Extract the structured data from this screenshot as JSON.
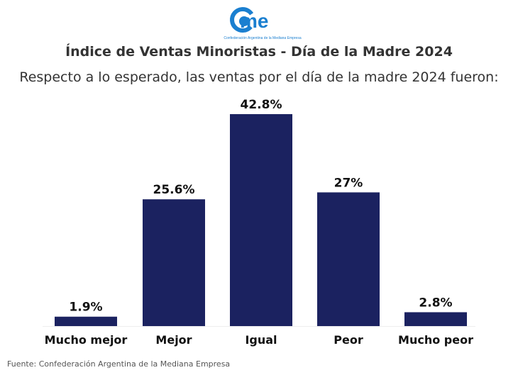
{
  "logo": {
    "text": "cme",
    "subtext": "Confederación Argentina de la Mediana Empresa",
    "color": "#1a7fd0"
  },
  "chart_data": {
    "type": "bar",
    "title": "Índice de Ventas Minoristas - Día de la Madre 2024",
    "subtitle": "Respecto a lo esperado, las ventas por el día de la madre 2024 fueron:",
    "categories": [
      "Mucho mejor",
      "Mejor",
      "Igual",
      "Peor",
      "Mucho peor"
    ],
    "values": [
      1.9,
      25.6,
      42.8,
      27,
      2.8
    ],
    "data_labels": [
      "1.9%",
      "25.6%",
      "42.8%",
      "27%",
      "2.8%"
    ],
    "bar_color": "#1b2260",
    "ylim": [
      0,
      42.8
    ],
    "grid": false
  },
  "source": "Fuente: Confederación Argentina de la Mediana Empresa"
}
